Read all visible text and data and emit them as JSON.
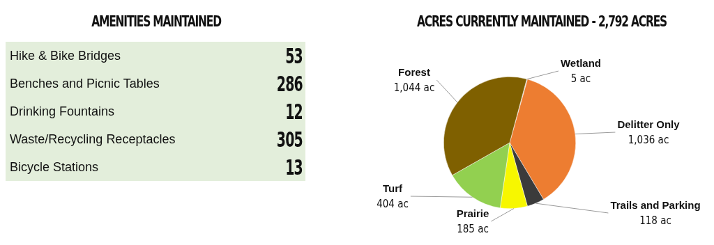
{
  "chart_data": [
    {
      "type": "other",
      "title": "AMENITIES MAINTAINED",
      "categories": [
        "Hike & Bike Bridges",
        "Benches and Picnic Tables",
        "Drinking Fountains",
        "Waste/Recycling Receptacles",
        "Bicycle Stations"
      ],
      "values": [
        53,
        286,
        12,
        305,
        13
      ],
      "data_labels": true
    },
    {
      "type": "pie",
      "title": "ACRES CURRENTLY MAINTAINED - 2,792 ACRES",
      "categories": [
        "Wetland",
        "Delitter Only",
        "Trails and Parking",
        "Prairie",
        "Turf",
        "Forest"
      ],
      "values": [
        5,
        1036,
        118,
        185,
        404,
        1044
      ],
      "colors": [
        "#b0b0b0",
        "#ed7d31",
        "#3b3b3b",
        "#f7f700",
        "#92d050",
        "#7f6000"
      ],
      "value_labels": [
        "5 ac",
        "1,036 ac",
        "118 ac",
        "185 ac",
        "404 ac",
        "1,044 ac"
      ]
    }
  ]
}
